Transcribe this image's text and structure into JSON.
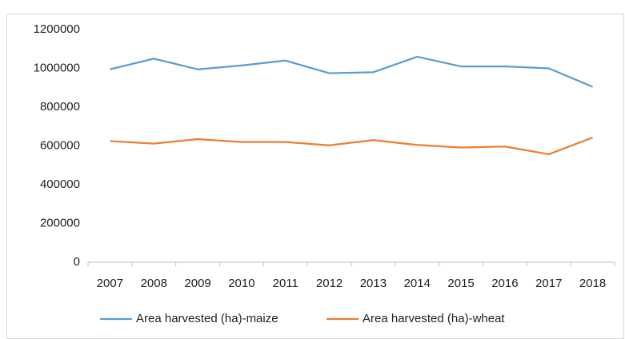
{
  "chart_data": {
    "type": "line",
    "categories": [
      "2007",
      "2008",
      "2009",
      "2010",
      "2011",
      "2012",
      "2013",
      "2014",
      "2015",
      "2016",
      "2017",
      "2018"
    ],
    "series": [
      {
        "name": "Area harvested (ha)-maize",
        "color": "#5b9bd5",
        "values": [
          995000,
          1050000,
          995000,
          1015000,
          1040000,
          975000,
          980000,
          1060000,
          1010000,
          1010000,
          1000000,
          905000
        ]
      },
      {
        "name": "Area harvested (ha)-wheat",
        "color": "#ed7d31",
        "values": [
          625000,
          612000,
          635000,
          620000,
          620000,
          603000,
          630000,
          605000,
          592000,
          597000,
          557000,
          643000
        ]
      }
    ],
    "ylim": [
      0,
      1200000
    ],
    "yticks": [
      0,
      200000,
      400000,
      600000,
      800000,
      1000000,
      1200000
    ],
    "grid": false,
    "legend": "bottom"
  }
}
